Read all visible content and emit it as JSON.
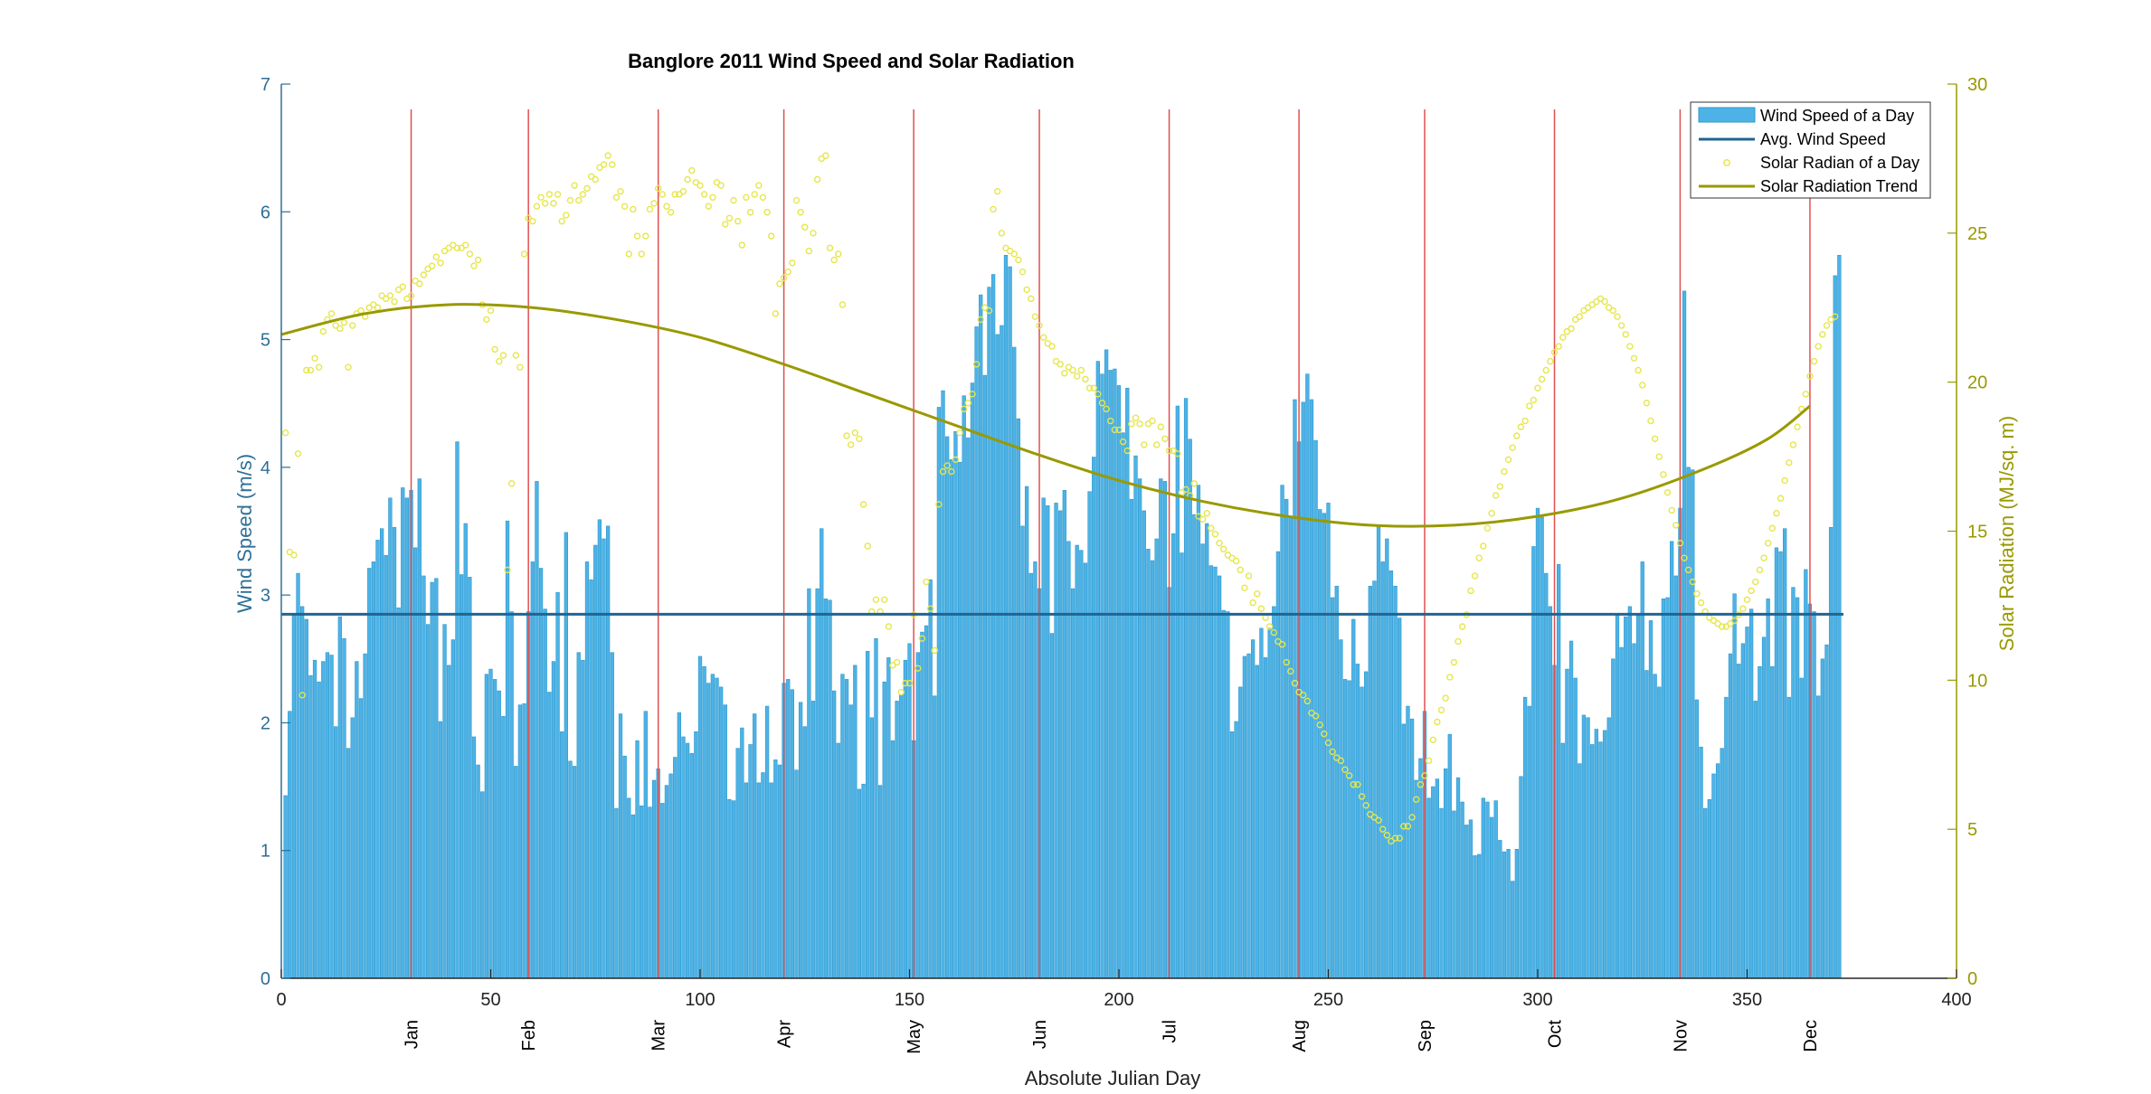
{
  "chart_data": {
    "type": "bar",
    "title": "Banglore 2011 Wind Speed and Solar Radiation",
    "xlabel": "Absolute Julian Day",
    "ylabel_left": "Wind Speed (m/s)",
    "ylabel_right": "Solar Radiation (MJ/sq. m)",
    "xlim": [
      0,
      400
    ],
    "ylim_left": [
      0,
      7
    ],
    "ylim_right": [
      0,
      30
    ],
    "x_ticks": [
      0,
      50,
      100,
      150,
      200,
      250,
      300,
      350,
      400
    ],
    "y_left_ticks": [
      0,
      1,
      2,
      3,
      4,
      5,
      6,
      7
    ],
    "y_right_ticks": [
      0,
      5,
      10,
      15,
      20,
      25,
      30
    ],
    "avg_wind_speed": 2.85,
    "month_labels": [
      {
        "day": 31,
        "label": "Jan"
      },
      {
        "day": 59,
        "label": "Feb"
      },
      {
        "day": 90,
        "label": "Mar"
      },
      {
        "day": 120,
        "label": "Apr"
      },
      {
        "day": 151,
        "label": "May"
      },
      {
        "day": 181,
        "label": "Jun"
      },
      {
        "day": 212,
        "label": "Jul"
      },
      {
        "day": 243,
        "label": "Aug"
      },
      {
        "day": 273,
        "label": "Sep"
      },
      {
        "day": 304,
        "label": "Oct"
      },
      {
        "day": 334,
        "label": "Nov"
      },
      {
        "day": 365,
        "label": "Dec"
      }
    ],
    "wind_speed": {
      "name": "Wind Speed of a Day",
      "x_start": 1,
      "values": [
        1.43,
        2.09,
        2.84,
        3.17,
        2.91,
        2.81,
        2.37,
        2.49,
        2.32,
        2.48,
        2.55,
        2.53,
        1.97,
        2.83,
        2.66,
        1.8,
        2.04,
        2.48,
        2.19,
        2.54,
        3.21,
        3.26,
        3.43,
        3.52,
        3.31,
        3.76,
        3.53,
        2.9,
        3.84,
        3.76,
        3.82,
        3.37,
        3.91,
        3.15,
        2.77,
        3.1,
        3.13,
        2.01,
        2.77,
        2.45,
        2.65,
        4.2,
        3.16,
        3.56,
        3.14,
        1.89,
        1.67,
        1.46,
        2.38,
        2.42,
        2.34,
        2.25,
        2.05,
        3.58,
        2.87,
        1.66,
        2.14,
        2.15,
        2.87,
        3.26,
        3.89,
        3.21,
        2.89,
        2.24,
        2.48,
        3.02,
        1.93,
        3.49,
        1.7,
        1.66,
        2.55,
        2.49,
        3.26,
        3.12,
        3.39,
        3.59,
        3.44,
        3.54,
        2.55,
        1.33,
        2.07,
        1.74,
        1.41,
        1.28,
        1.86,
        1.35,
        2.09,
        1.34,
        1.55,
        1.64,
        1.37,
        1.51,
        1.6,
        1.73,
        2.08,
        1.89,
        1.84,
        1.76,
        1.93,
        2.52,
        2.44,
        2.31,
        2.38,
        2.35,
        2.28,
        2.14,
        1.4,
        1.39,
        1.8,
        1.96,
        1.53,
        1.83,
        2.07,
        1.53,
        1.61,
        2.13,
        1.53,
        1.71,
        1.67,
        2.31,
        2.34,
        2.26,
        1.63,
        2.16,
        1.97,
        3.05,
        2.17,
        3.05,
        3.52,
        2.97,
        2.96,
        2.25,
        1.84,
        2.38,
        2.34,
        2.14,
        2.45,
        1.48,
        1.52,
        2.56,
        2.04,
        2.66,
        1.51,
        2.32,
        2.51,
        1.86,
        2.17,
        2.22,
        2.49,
        2.62,
        1.86,
        2.55,
        2.71,
        2.76,
        3.12,
        2.21,
        4.47,
        4.6,
        4.24,
        4.06,
        4.28,
        4.04,
        4.56,
        4.23,
        4.66,
        5.1,
        5.35,
        4.72,
        5.41,
        5.51,
        5.04,
        5.11,
        5.66,
        5.57,
        4.94,
        4.38,
        3.54,
        3.85,
        3.17,
        3.26,
        3.05,
        3.76,
        3.7,
        2.7,
        3.72,
        3.66,
        3.82,
        3.42,
        3.05,
        3.39,
        3.35,
        3.25,
        3.81,
        4.08,
        4.83,
        4.73,
        4.92,
        4.76,
        4.77,
        4.64,
        4.27,
        4.62,
        3.75,
        4.09,
        3.91,
        3.66,
        3.36,
        3.27,
        3.44,
        3.91,
        3.89,
        3.06,
        3.48,
        4.48,
        3.33,
        4.54,
        4.22,
        3.63,
        3.86,
        3.4,
        3.56,
        3.23,
        3.22,
        3.15,
        2.88,
        2.87,
        1.93,
        2.01,
        2.28,
        2.52,
        2.54,
        2.65,
        2.45,
        2.74,
        2.51,
        2.74,
        2.91,
        3.34,
        3.86,
        3.75,
        3.61,
        4.53,
        4.2,
        4.51,
        4.73,
        4.53,
        4.21,
        3.67,
        3.64,
        3.72,
        2.98,
        3.07,
        2.65,
        2.34,
        2.33,
        2.81,
        2.46,
        2.28,
        2.4,
        3.07,
        3.11,
        3.55,
        3.26,
        3.44,
        3.19,
        3.07,
        2.82,
        1.99,
        2.13,
        2.03,
        1.55,
        1.72,
        2.09,
        1.41,
        1.5,
        1.56,
        1.33,
        1.64,
        1.91,
        1.31,
        1.57,
        1.38,
        1.2,
        1.24,
        0.96,
        0.97,
        1.41,
        1.38,
        1.26,
        1.39,
        1.08,
        0.99,
        1.01,
        0.76,
        1.01,
        1.58,
        2.2,
        2.13,
        3.38,
        3.68,
        3.61,
        3.17,
        2.91,
        2.45,
        3.24,
        1.84,
        2.42,
        2.64,
        2.35,
        1.68,
        2.06,
        2.04,
        1.83,
        1.95,
        1.85,
        1.94,
        2.04,
        2.5,
        2.84,
        2.59,
        2.83,
        2.91,
        2.62,
        2.84,
        3.26,
        2.41,
        2.8,
        2.38,
        2.28,
        2.97,
        2.98,
        3.42,
        3.15,
        3.68,
        5.38,
        4.0,
        3.98,
        2.18,
        1.81,
        1.33,
        1.4,
        1.6,
        1.68,
        1.8,
        2.2,
        2.54,
        3.01,
        2.46,
        2.62,
        2.75,
        2.89,
        2.17,
        2.44,
        2.67,
        2.97,
        2.44,
        3.37,
        3.34,
        3.52,
        2.2,
        3.06,
        2.98,
        2.35,
        3.2,
        2.93,
        2.87,
        2.21,
        2.5,
        2.61,
        3.53,
        5.5,
        5.66
      ]
    },
    "solar_radiation": {
      "name": "Solar Radian of a Day",
      "x_start": 1,
      "values": [
        18.3,
        14.3,
        14.2,
        17.6,
        9.5,
        20.4,
        20.4,
        20.8,
        20.5,
        21.7,
        22.1,
        22.3,
        21.9,
        21.8,
        22.0,
        20.5,
        21.9,
        22.3,
        22.4,
        22.2,
        22.5,
        22.6,
        22.5,
        22.9,
        22.8,
        22.9,
        22.7,
        23.1,
        23.2,
        22.8,
        22.9,
        23.4,
        23.3,
        23.6,
        23.8,
        23.9,
        24.2,
        24.0,
        24.4,
        24.5,
        24.6,
        24.5,
        24.5,
        24.6,
        24.3,
        23.9,
        24.1,
        22.6,
        22.1,
        22.4,
        21.1,
        20.7,
        20.9,
        13.7,
        16.6,
        20.9,
        20.5,
        24.3,
        25.5,
        25.4,
        25.9,
        26.2,
        26.0,
        26.3,
        26.0,
        26.3,
        25.4,
        25.6,
        26.1,
        26.6,
        26.1,
        26.3,
        26.5,
        26.9,
        26.8,
        27.2,
        27.3,
        27.6,
        27.3,
        26.2,
        26.4,
        25.9,
        24.3,
        25.8,
        24.9,
        24.3,
        24.9,
        25.8,
        26.0,
        26.5,
        26.3,
        25.9,
        25.7,
        26.3,
        26.3,
        26.4,
        26.8,
        27.1,
        26.7,
        26.6,
        26.3,
        25.9,
        26.2,
        26.7,
        26.6,
        25.3,
        25.5,
        26.1,
        25.4,
        24.6,
        26.2,
        25.7,
        26.3,
        26.6,
        26.2,
        25.7,
        24.9,
        22.3,
        23.3,
        23.5,
        23.7,
        24.0,
        26.1,
        25.7,
        25.2,
        24.4,
        25.0,
        26.8,
        27.5,
        27.6,
        24.5,
        24.1,
        24.3,
        22.6,
        18.2,
        17.9,
        18.3,
        18.1,
        15.9,
        14.5,
        12.3,
        12.7,
        12.3,
        12.7,
        11.8,
        10.5,
        10.6,
        9.6,
        9.9,
        9.9,
        12.2,
        10.4,
        11.4,
        13.3,
        12.4,
        11.0,
        15.9,
        17.0,
        17.2,
        17.0,
        17.4,
        18.3,
        19.1,
        19.3,
        19.6,
        20.6,
        22.1,
        22.5,
        22.4,
        25.8,
        26.4,
        25.0,
        24.5,
        24.4,
        24.3,
        24.1,
        23.7,
        23.1,
        22.8,
        22.2,
        21.9,
        21.5,
        21.3,
        21.2,
        20.7,
        20.6,
        20.3,
        20.5,
        20.4,
        20.2,
        20.4,
        20.1,
        19.8,
        19.8,
        19.6,
        19.3,
        19.1,
        18.7,
        18.4,
        18.4,
        18.0,
        17.7,
        18.6,
        18.8,
        18.6,
        17.9,
        18.6,
        18.7,
        17.9,
        18.5,
        18.1,
        17.7,
        17.7,
        17.6,
        16.3,
        16.4,
        16.2,
        16.6,
        15.5,
        15.4,
        15.6,
        15.1,
        14.9,
        14.6,
        14.4,
        14.2,
        14.1,
        14.0,
        13.7,
        13.1,
        13.5,
        12.6,
        12.9,
        12.4,
        12.1,
        11.8,
        11.6,
        11.3,
        11.2,
        10.6,
        10.3,
        9.9,
        9.6,
        9.5,
        9.3,
        8.9,
        8.8,
        8.5,
        8.2,
        7.9,
        7.6,
        7.4,
        7.3,
        7.0,
        6.8,
        6.5,
        6.5,
        6.1,
        5.8,
        5.5,
        5.4,
        5.3,
        5.0,
        4.8,
        4.6,
        4.7,
        4.7,
        5.1,
        5.1,
        5.4,
        6.0,
        6.5,
        6.8,
        7.3,
        8.0,
        8.6,
        9.0,
        9.4,
        10.1,
        10.6,
        11.3,
        11.8,
        12.2,
        13.0,
        13.5,
        14.1,
        14.5,
        15.1,
        15.6,
        16.2,
        16.5,
        17.0,
        17.4,
        17.8,
        18.2,
        18.5,
        18.7,
        19.2,
        19.4,
        19.8,
        20.1,
        20.4,
        20.7,
        21.0,
        21.2,
        21.5,
        21.7,
        21.8,
        22.1,
        22.2,
        22.4,
        22.5,
        22.6,
        22.7,
        22.8,
        22.7,
        22.5,
        22.4,
        22.2,
        21.9,
        21.6,
        21.2,
        20.8,
        20.4,
        19.9,
        19.3,
        18.7,
        18.1,
        17.5,
        16.9,
        16.3,
        15.7,
        15.2,
        14.6,
        14.1,
        13.7,
        13.3,
        12.9,
        12.6,
        12.3,
        12.1,
        12.0,
        11.9,
        11.8,
        11.8,
        11.9,
        12.0,
        12.2,
        12.4,
        12.7,
        13.0,
        13.3,
        13.7,
        14.1,
        14.6,
        15.1,
        15.6,
        16.1,
        16.7,
        17.3,
        17.9,
        18.5,
        19.1,
        19.6,
        20.2,
        20.7,
        21.2,
        21.6,
        21.9,
        22.1,
        22.2
      ]
    },
    "solar_trend": {
      "name": "Solar Radiation Trend",
      "x": [
        0,
        20,
        40,
        60,
        80,
        100,
        120,
        140,
        160,
        180,
        200,
        220,
        240,
        260,
        280,
        300,
        320,
        340,
        355,
        365
      ],
      "values": [
        21.6,
        22.3,
        22.6,
        22.5,
        22.1,
        21.5,
        20.6,
        19.6,
        18.6,
        17.6,
        16.7,
        16.0,
        15.5,
        15.2,
        15.2,
        15.5,
        16.1,
        17.1,
        18.1,
        19.2
      ]
    },
    "legend": {
      "position": "top-right",
      "entries": [
        "Wind Speed of a Day",
        "Avg. Wind Speed",
        "Solar Radian of a Day",
        "Solar Radiation Trend"
      ]
    },
    "grid": false,
    "colors": {
      "bars": "#4db3e6",
      "bar_edge": "#2f97cc",
      "avg_line": "#1f6493",
      "solar_points": "#e6e64d",
      "trend_line": "#999900",
      "month_lines": "#e05050",
      "left_axis": "#2e6f96",
      "right_axis": "#999900"
    }
  }
}
